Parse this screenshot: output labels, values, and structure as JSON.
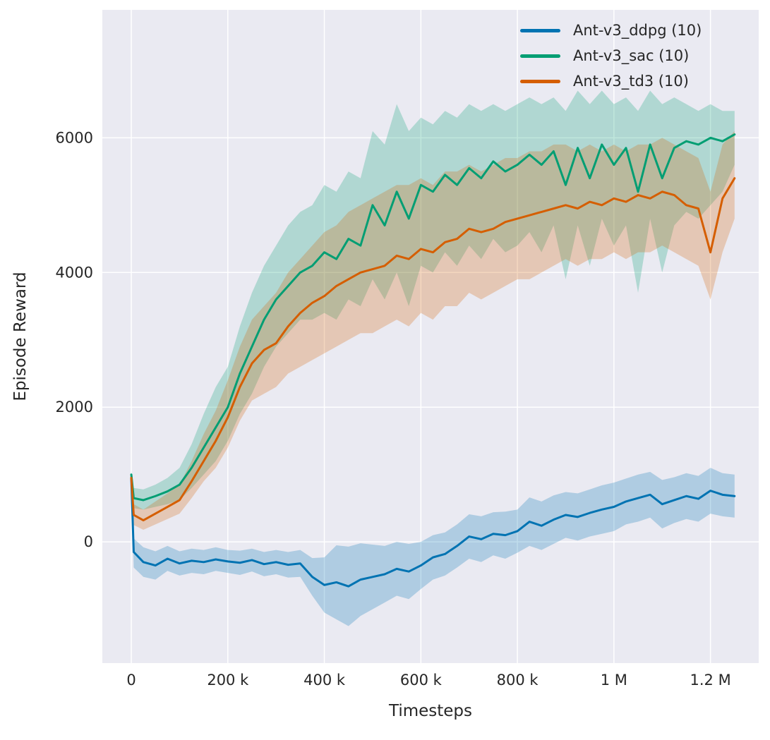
{
  "figure": {
    "background": "#ffffff",
    "axes_background": "#eaeaf2",
    "grid_color": "#ffffff",
    "text_color": "#262626"
  },
  "chart_data": {
    "type": "line",
    "title": "",
    "xlabel": "Timesteps",
    "ylabel": "Episode Reward",
    "grid": true,
    "legend_position": "upper right",
    "xlim": [
      -60000,
      1300000
    ],
    "ylim": [
      -1800,
      7900
    ],
    "xticks": [
      {
        "v": 0,
        "label": "0"
      },
      {
        "v": 200000,
        "label": "200 k"
      },
      {
        "v": 400000,
        "label": "400 k"
      },
      {
        "v": 600000,
        "label": "600 k"
      },
      {
        "v": 800000,
        "label": "800 k"
      },
      {
        "v": 1000000,
        "label": "1 M"
      },
      {
        "v": 1200000,
        "label": "1.2 M"
      }
    ],
    "yticks": [
      {
        "v": 0,
        "label": "0"
      },
      {
        "v": 2000,
        "label": "2000"
      },
      {
        "v": 4000,
        "label": "4000"
      },
      {
        "v": 6000,
        "label": "6000"
      }
    ],
    "x": [
      0,
      5000,
      25000,
      50000,
      75000,
      100000,
      125000,
      150000,
      175000,
      200000,
      225000,
      250000,
      275000,
      300000,
      325000,
      350000,
      375000,
      400000,
      425000,
      450000,
      475000,
      500000,
      525000,
      550000,
      575000,
      600000,
      625000,
      650000,
      675000,
      700000,
      725000,
      750000,
      775000,
      800000,
      825000,
      850000,
      875000,
      900000,
      925000,
      950000,
      975000,
      1000000,
      1025000,
      1050000,
      1075000,
      1100000,
      1125000,
      1150000,
      1175000,
      1200000,
      1225000,
      1250000
    ],
    "band_opacity": 0.25,
    "series": [
      {
        "name": "Ant-v3_ddpg (10)",
        "color": "#0173b2",
        "mean": [
          950,
          -150,
          -300,
          -350,
          -250,
          -320,
          -280,
          -300,
          -260,
          -290,
          -310,
          -270,
          -330,
          -300,
          -340,
          -320,
          -520,
          -640,
          -600,
          -660,
          -560,
          -520,
          -480,
          -400,
          -440,
          -350,
          -230,
          -180,
          -60,
          80,
          40,
          120,
          100,
          160,
          300,
          240,
          330,
          400,
          370,
          430,
          480,
          520,
          600,
          650,
          700,
          560,
          620,
          680,
          640,
          760,
          700,
          680
        ],
        "lo": [
          900,
          -380,
          -520,
          -560,
          -430,
          -500,
          -460,
          -480,
          -430,
          -460,
          -490,
          -440,
          -510,
          -480,
          -530,
          -520,
          -800,
          -1050,
          -1150,
          -1250,
          -1100,
          -1000,
          -900,
          -800,
          -850,
          -700,
          -560,
          -500,
          -380,
          -250,
          -300,
          -200,
          -250,
          -160,
          -60,
          -120,
          -30,
          60,
          20,
          80,
          120,
          160,
          260,
          300,
          360,
          200,
          280,
          340,
          300,
          420,
          380,
          360
        ],
        "hi": [
          1000,
          50,
          -80,
          -140,
          -60,
          -140,
          -100,
          -120,
          -80,
          -120,
          -130,
          -100,
          -150,
          -120,
          -150,
          -120,
          -240,
          -230,
          -50,
          -70,
          -20,
          -40,
          -60,
          0,
          -30,
          0,
          100,
          140,
          260,
          410,
          380,
          440,
          450,
          480,
          660,
          600,
          690,
          740,
          720,
          780,
          840,
          880,
          940,
          1000,
          1040,
          920,
          960,
          1020,
          980,
          1100,
          1020,
          1000
        ]
      },
      {
        "name": "Ant-v3_sac (10)",
        "color": "#029e73",
        "mean": [
          1000,
          650,
          620,
          680,
          750,
          850,
          1100,
          1400,
          1700,
          2000,
          2500,
          2900,
          3300,
          3600,
          3800,
          4000,
          4100,
          4300,
          4200,
          4500,
          4400,
          5000,
          4700,
          5200,
          4800,
          5300,
          5200,
          5450,
          5300,
          5550,
          5400,
          5650,
          5500,
          5600,
          5750,
          5600,
          5800,
          5300,
          5850,
          5400,
          5900,
          5600,
          5850,
          5200,
          5900,
          5400,
          5850,
          5950,
          5900,
          6000,
          5950,
          6050
        ],
        "lo": [
          950,
          500,
          480,
          520,
          560,
          620,
          800,
          1000,
          1200,
          1500,
          1900,
          2200,
          2600,
          2900,
          3100,
          3300,
          3300,
          3400,
          3300,
          3600,
          3500,
          3900,
          3600,
          4000,
          3500,
          4100,
          4000,
          4300,
          4100,
          4400,
          4200,
          4500,
          4300,
          4400,
          4600,
          4300,
          4700,
          3900,
          4700,
          4100,
          4800,
          4400,
          4700,
          3700,
          4800,
          4000,
          4700,
          4900,
          4800,
          5000,
          5200,
          5600
        ],
        "hi": [
          1050,
          800,
          780,
          850,
          950,
          1100,
          1450,
          1900,
          2300,
          2600,
          3200,
          3700,
          4100,
          4400,
          4700,
          4900,
          5000,
          5300,
          5200,
          5500,
          5400,
          6100,
          5900,
          6500,
          6100,
          6300,
          6200,
          6400,
          6300,
          6500,
          6400,
          6500,
          6400,
          6500,
          6600,
          6500,
          6600,
          6400,
          6700,
          6500,
          6700,
          6500,
          6600,
          6400,
          6700,
          6500,
          6600,
          6500,
          6400,
          6500,
          6400,
          6400
        ]
      },
      {
        "name": "Ant-v3_td3 (10)",
        "color": "#d55e00",
        "mean": [
          950,
          400,
          320,
          420,
          520,
          620,
          900,
          1200,
          1500,
          1850,
          2300,
          2650,
          2850,
          2950,
          3200,
          3400,
          3550,
          3650,
          3800,
          3900,
          4000,
          4050,
          4100,
          4250,
          4200,
          4350,
          4300,
          4450,
          4500,
          4650,
          4600,
          4650,
          4750,
          4800,
          4850,
          4900,
          4950,
          5000,
          4950,
          5050,
          5000,
          5100,
          5050,
          5150,
          5100,
          5200,
          5150,
          5000,
          4950,
          4300,
          5100,
          5400
        ],
        "lo": [
          900,
          250,
          180,
          260,
          340,
          420,
          650,
          900,
          1100,
          1400,
          1800,
          2100,
          2200,
          2300,
          2500,
          2600,
          2700,
          2800,
          2900,
          3000,
          3100,
          3100,
          3200,
          3300,
          3200,
          3400,
          3300,
          3500,
          3500,
          3700,
          3600,
          3700,
          3800,
          3900,
          3900,
          4000,
          4100,
          4200,
          4100,
          4200,
          4200,
          4300,
          4200,
          4300,
          4300,
          4400,
          4300,
          4200,
          4100,
          3600,
          4300,
          4800
        ],
        "hi": [
          1000,
          560,
          480,
          600,
          720,
          850,
          1200,
          1600,
          1950,
          2400,
          2900,
          3300,
          3500,
          3700,
          4000,
          4200,
          4400,
          4600,
          4700,
          4900,
          5000,
          5100,
          5200,
          5300,
          5300,
          5400,
          5300,
          5500,
          5500,
          5600,
          5500,
          5600,
          5700,
          5700,
          5800,
          5800,
          5900,
          5900,
          5800,
          5900,
          5800,
          5900,
          5800,
          5900,
          5900,
          6000,
          5900,
          5800,
          5700,
          5200,
          5900,
          6100
        ]
      }
    ]
  }
}
